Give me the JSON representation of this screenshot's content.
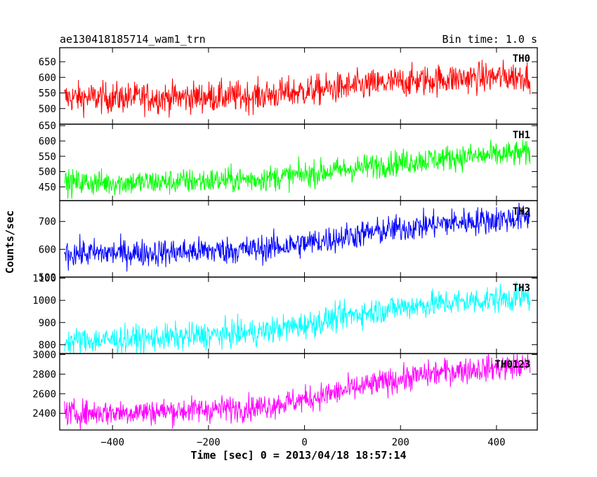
{
  "header": {
    "left": "ae130418185714_wam1_trn",
    "right": "Bin time: 1.0 s"
  },
  "ylabel": "Counts/sec",
  "xlabel": "Time [sec] 0 = 2013/04/18 18:57:14",
  "chart_data": [
    {
      "type": "line",
      "label": "TH0",
      "color": "#ff0000",
      "x_range": [
        -500,
        470
      ],
      "ylim": [
        450,
        695
      ],
      "yticks": [
        500,
        550,
        600,
        650
      ],
      "trend": {
        "x": [
          -500,
          -300,
          -100,
          0,
          100,
          200,
          300,
          470
        ],
        "y": [
          535,
          535,
          540,
          555,
          570,
          585,
          595,
          605
        ]
      },
      "noise_amp": 45
    },
    {
      "type": "line",
      "label": "TH1",
      "color": "#00ff00",
      "x_range": [
        -500,
        470
      ],
      "ylim": [
        405,
        655
      ],
      "yticks": [
        450,
        500,
        550,
        600,
        650
      ],
      "trend": {
        "x": [
          -500,
          -300,
          -100,
          0,
          100,
          200,
          300,
          470
        ],
        "y": [
          463,
          465,
          475,
          490,
          510,
          530,
          545,
          560
        ]
      },
      "noise_amp": 38
    },
    {
      "type": "line",
      "label": "TH2",
      "color": "#0000ff",
      "x_range": [
        -500,
        470
      ],
      "ylim": [
        500,
        775
      ],
      "yticks": [
        500,
        600,
        700
      ],
      "trend": {
        "x": [
          -500,
          -300,
          -100,
          0,
          100,
          200,
          300,
          470
        ],
        "y": [
          585,
          588,
          600,
          620,
          650,
          675,
          695,
          715
        ]
      },
      "noise_amp": 45
    },
    {
      "type": "line",
      "label": "TH3",
      "color": "#00ffff",
      "x_range": [
        -500,
        470
      ],
      "ylim": [
        760,
        1105
      ],
      "yticks": [
        800,
        900,
        1000,
        1100
      ],
      "trend": {
        "x": [
          -500,
          -300,
          -100,
          0,
          100,
          200,
          300,
          470
        ],
        "y": [
          815,
          830,
          855,
          890,
          935,
          970,
          990,
          1015
        ]
      },
      "noise_amp": 55
    },
    {
      "type": "line",
      "label": "TH0123",
      "color": "#ff00ff",
      "x_range": [
        -500,
        470
      ],
      "ylim": [
        2230,
        3010
      ],
      "yticks": [
        2400,
        2600,
        2800,
        3000
      ],
      "trend": {
        "x": [
          -500,
          -300,
          -100,
          0,
          100,
          200,
          300,
          470
        ],
        "y": [
          2400,
          2420,
          2460,
          2540,
          2650,
          2750,
          2830,
          2890
        ]
      },
      "noise_amp": 120
    }
  ],
  "x_axis": {
    "xlim": [
      -510,
      485
    ],
    "ticks": [
      -400,
      -200,
      0,
      200,
      400
    ],
    "tick_labels": [
      "−400",
      "−200",
      "0",
      "200",
      "400"
    ]
  }
}
